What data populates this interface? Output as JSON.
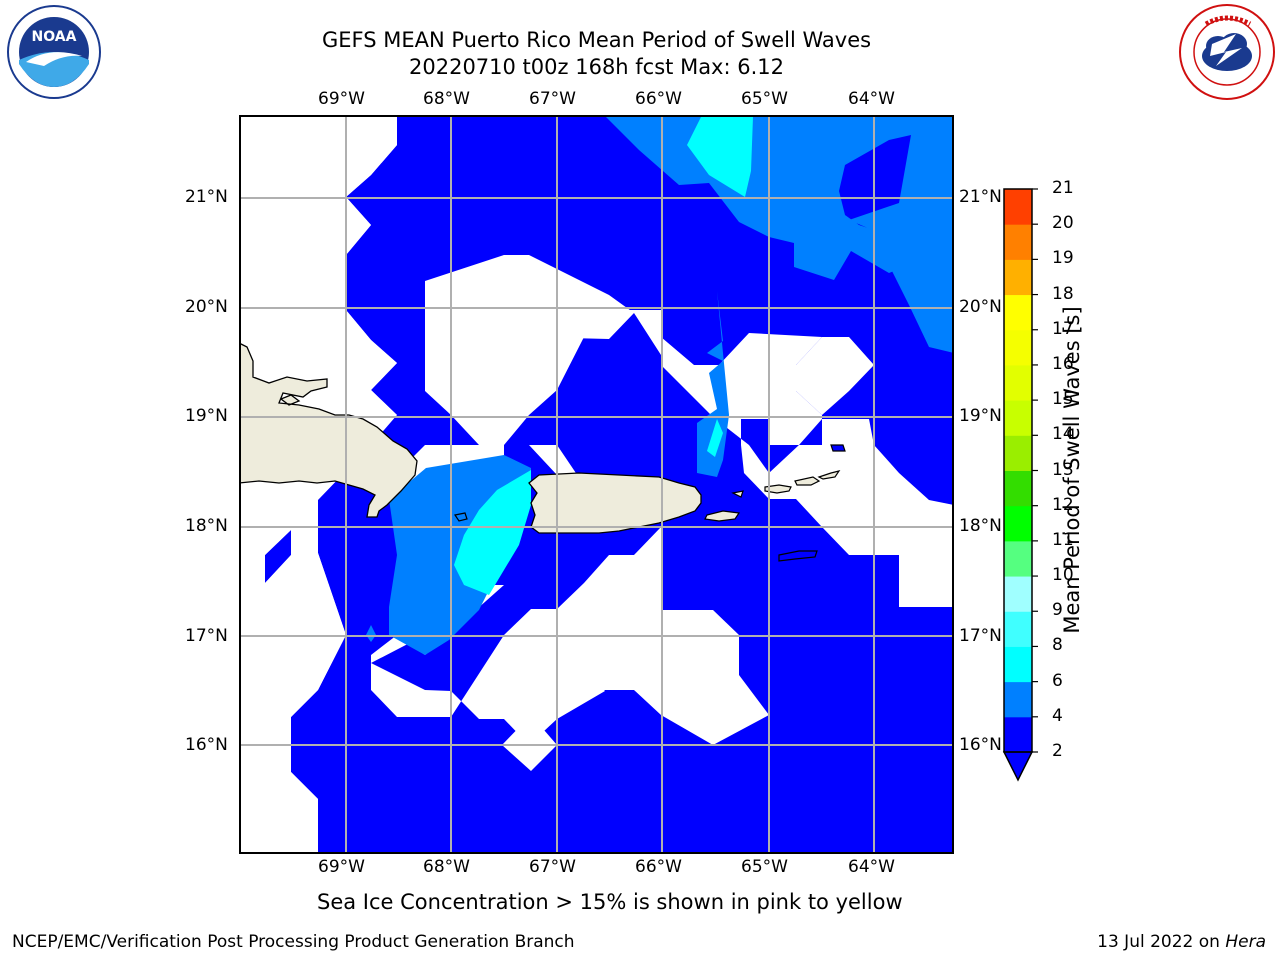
{
  "header": {
    "title_line1": "GEFS MEAN Puerto Rico Mean Period of Swell Waves",
    "title_line2": "20220710 t00z 168h fcst   Max: 6.12"
  },
  "logos": {
    "noaa_text": "NOAA",
    "nws_text": "NATIONAL WEATHER SERVICE"
  },
  "axes": {
    "lon_labels": [
      "69°W",
      "68°W",
      "67°W",
      "66°W",
      "65°W",
      "64°W"
    ],
    "lat_labels": [
      "21°N",
      "20°N",
      "19°N",
      "18°N",
      "17°N",
      "16°N"
    ]
  },
  "colorbar": {
    "label": "Mean Period of Swell Waves [s]",
    "ticks": [
      "2",
      "4",
      "6",
      "8",
      "9",
      "10",
      "11",
      "12",
      "13",
      "14",
      "15",
      "16",
      "17",
      "18",
      "19",
      "20",
      "21"
    ],
    "colors": [
      "#0000ff",
      "#0080ff",
      "#00ffff",
      "#40ffff",
      "#a0ffff",
      "#55ff80",
      "#00ff00",
      "#33dd00",
      "#9aee00",
      "#c8ff00",
      "#e2ff00",
      "#f5ff00",
      "#ffff00",
      "#ffb000",
      "#ff8000",
      "#ff4000",
      "#ff0000"
    ]
  },
  "map": {
    "water_colors": {
      "lt2": "#0000ff",
      "c2_4": "#0080ff",
      "c4_6": "#00ffff",
      "land": "#eeecdc"
    }
  },
  "notes": {
    "sea_ice": "Sea Ice Concentration > 15% is shown in pink to yellow"
  },
  "footer": {
    "left": "NCEP/EMC/Verification Post Processing Product Generation Branch",
    "right_date": "13 Jul 2022 on ",
    "right_machine": "Hera"
  }
}
